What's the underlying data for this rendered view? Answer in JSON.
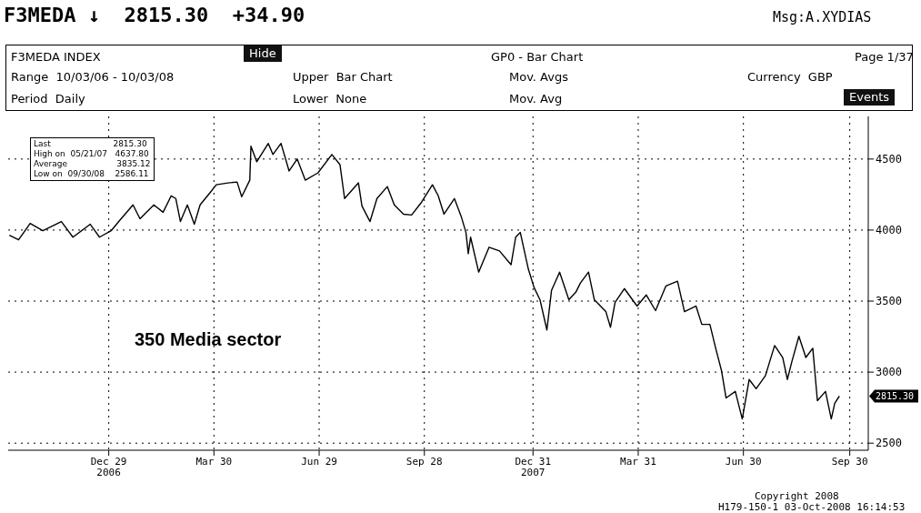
{
  "chart_data": {
    "type": "line",
    "title": "F3MEDA ↓  2815.30  +34.90",
    "subtitle": "350 Media sector",
    "annotations": [
      "Msg:A.XYDIAS",
      "F3MEDA INDEX",
      "Hide",
      "GP0 - Bar Chart",
      "Page 1/37",
      "Range  10/03/06 - 10/03/08",
      "Upper  Bar Chart",
      "Mov. Avgs",
      "Currency  GBP",
      "Period  Daily",
      "Lower  None",
      "Mov. Avg",
      "Events",
      "Last                        2815.30",
      "High on  05/21/07   4637.80",
      "Average                   3835.12",
      "Low on  09/30/08    2586.11",
      "H179-150-1 03-Oct-2008 16:14:53",
      "Copyright 2008",
      "2815.30"
    ],
    "x": [
      "2006-10-04",
      "2006-10-12",
      "2006-10-22",
      "2006-11-02",
      "2006-11-18",
      "2006-11-28",
      "2006-12-13",
      "2006-12-21",
      "2006-12-31",
      "2007-01-08",
      "2007-01-19",
      "2007-01-25",
      "2007-02-06",
      "2007-02-14",
      "2007-02-21",
      "2007-02-25",
      "2007-03-01",
      "2007-03-07",
      "2007-03-13",
      "2007-03-18",
      "2007-03-27",
      "2007-04-01",
      "2007-04-11",
      "2007-04-19",
      "2007-04-23",
      "2007-04-30",
      "2007-05-01",
      "2007-05-06",
      "2007-05-16",
      "2007-05-20",
      "2007-05-27",
      "2007-06-03",
      "2007-06-10",
      "2007-06-17",
      "2007-06-28",
      "2007-07-10",
      "2007-07-17",
      "2007-07-21",
      "2007-08-02",
      "2007-08-05",
      "2007-08-12",
      "2007-08-18",
      "2007-08-27",
      "2007-09-02",
      "2007-09-10",
      "2007-09-17",
      "2007-09-25",
      "2007-10-05",
      "2007-10-10",
      "2007-10-15",
      "2007-10-24",
      "2007-10-30",
      "2007-11-03",
      "2007-11-05",
      "2007-11-07",
      "2007-11-14",
      "2007-11-23",
      "2007-12-02",
      "2007-12-12",
      "2007-12-16",
      "2007-12-20",
      "2007-12-27",
      "2008-01-01",
      "2008-01-06",
      "2008-01-12",
      "2008-01-16",
      "2008-01-23",
      "2008-01-31",
      "2008-02-06",
      "2008-02-10",
      "2008-02-17",
      "2008-02-22",
      "2008-03-03",
      "2008-03-07",
      "2008-03-11",
      "2008-03-19",
      "2008-03-30",
      "2008-04-07",
      "2008-04-15",
      "2008-04-24",
      "2008-05-04",
      "2008-05-10",
      "2008-05-20",
      "2008-05-25",
      "2008-06-01",
      "2008-06-06",
      "2008-06-11",
      "2008-06-15",
      "2008-06-23",
      "2008-06-29",
      "2008-07-05",
      "2008-07-11",
      "2008-07-19",
      "2008-07-27",
      "2008-08-03",
      "2008-08-07",
      "2008-08-11",
      "2008-08-17",
      "2008-08-23",
      "2008-08-29",
      "2008-09-02",
      "2008-09-09",
      "2008-09-14",
      "2008-09-17",
      "2008-09-21"
    ],
    "series": [
      {
        "color": "#000000",
        "values": [
          3963,
          3931,
          4047,
          3995,
          4060,
          3950,
          4041,
          3950,
          3995,
          4073,
          4177,
          4080,
          4177,
          4125,
          4241,
          4222,
          4060,
          4177,
          4041,
          4177,
          4267,
          4319,
          4332,
          4338,
          4235,
          4351,
          4591,
          4481,
          4610,
          4532,
          4610,
          4416,
          4500,
          4351,
          4403,
          4532,
          4461,
          4222,
          4332,
          4170,
          4060,
          4222,
          4306,
          4177,
          4112,
          4106,
          4190,
          4319,
          4241,
          4112,
          4222,
          4093,
          3983,
          3834,
          3950,
          3704,
          3879,
          3853,
          3756,
          3950,
          3983,
          3724,
          3594,
          3510,
          3297,
          3575,
          3704,
          3510,
          3562,
          3627,
          3704,
          3510,
          3426,
          3316,
          3491,
          3588,
          3465,
          3543,
          3433,
          3607,
          3640,
          3426,
          3465,
          3336,
          3336,
          3168,
          3012,
          2818,
          2864,
          2670,
          2948,
          2883,
          2974,
          3187,
          3103,
          2948,
          3077,
          3252,
          3103,
          3168,
          2799,
          2864,
          2670,
          2780,
          2831
        ]
      }
    ],
    "xlim": [
      "2006-10-03",
      "2008-10-16"
    ],
    "xticks": [
      {
        "value": "2006-12-29",
        "label": "Dec 29\n2006"
      },
      {
        "value": "2007-03-30",
        "label": "Mar 30"
      },
      {
        "value": "2007-06-29",
        "label": "Jun 29"
      },
      {
        "value": "2007-09-28",
        "label": "Sep 28"
      },
      {
        "value": "2007-12-31",
        "label": "Dec 31\n2007"
      },
      {
        "value": "2008-03-31",
        "label": "Mar 31"
      },
      {
        "value": "2008-06-30",
        "label": "Jun 30"
      },
      {
        "value": "2008-09-30",
        "label": "Sep 30"
      }
    ],
    "ylim": [
      2450,
      4800
    ],
    "yticks": [
      2500,
      3000,
      3500,
      4000,
      4500
    ],
    "grid": true,
    "marker": "none",
    "line_style": "solid"
  }
}
